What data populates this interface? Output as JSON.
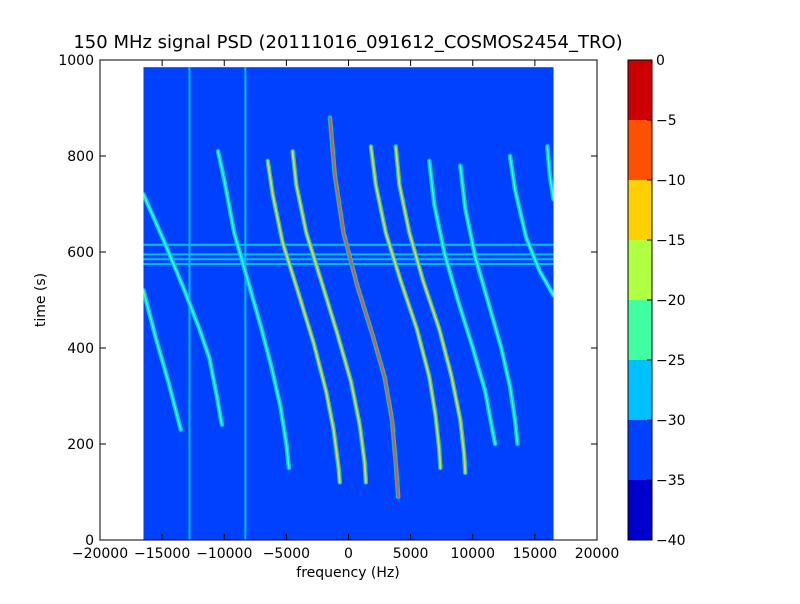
{
  "chart_data": {
    "type": "heatmap",
    "title": "150 MHz signal PSD (20111016_091612_COSMOS2454_TRO)",
    "xlabel": "frequency (Hz)",
    "ylabel": "time (s)",
    "xlim": [
      -20000,
      20000
    ],
    "ylim": [
      0,
      1000
    ],
    "x_ticks": [
      -20000,
      -15000,
      -10000,
      -5000,
      0,
      5000,
      10000,
      15000,
      20000
    ],
    "y_ticks": [
      0,
      200,
      400,
      600,
      800,
      1000
    ],
    "data_extent": {
      "x": [
        -16500,
        16500
      ],
      "y": [
        0,
        985
      ]
    },
    "background_level": -35,
    "grid": false,
    "colorbar": {
      "levels": [
        -40,
        -35,
        -30,
        -25,
        -20,
        -15,
        -10,
        -5,
        0
      ],
      "colors": [
        "#0000cc",
        "#0040ff",
        "#00c0ff",
        "#40ffa0",
        "#b0ff40",
        "#ffd000",
        "#ff5000",
        "#cc0000"
      ],
      "tick_labels": [
        "0",
        "−5",
        "−10",
        "−15",
        "−20",
        "−25",
        "−30",
        "−35",
        "−40"
      ]
    },
    "vertical_lines": [
      {
        "x": -12800,
        "level": -30
      },
      {
        "x": -8300,
        "level": -30
      }
    ],
    "horizontal_bands": [
      {
        "y": 615,
        "level": -30
      },
      {
        "y": 595,
        "level": -30
      },
      {
        "y": 585,
        "level": -30
      },
      {
        "y": 575,
        "level": -30
      }
    ],
    "traces": [
      {
        "points": [
          [
            -16500,
            720
          ],
          [
            -14800,
            620
          ],
          [
            -13200,
            520
          ],
          [
            -12000,
            440
          ],
          [
            -11200,
            380
          ],
          [
            -10600,
            300
          ],
          [
            -10200,
            240
          ]
        ],
        "level": -25
      },
      {
        "points": [
          [
            -16500,
            520
          ],
          [
            -15500,
            420
          ],
          [
            -14500,
            330
          ],
          [
            -13800,
            260
          ],
          [
            -13500,
            230
          ]
        ],
        "level": -25
      },
      {
        "points": [
          [
            -10500,
            810
          ],
          [
            -10000,
            750
          ],
          [
            -9200,
            640
          ],
          [
            -8100,
            540
          ],
          [
            -7000,
            440
          ],
          [
            -6200,
            360
          ],
          [
            -5500,
            280
          ],
          [
            -5000,
            200
          ],
          [
            -4800,
            150
          ]
        ],
        "level": -25
      },
      {
        "points": [
          [
            -6500,
            790
          ],
          [
            -6100,
            720
          ],
          [
            -5300,
            620
          ],
          [
            -4100,
            520
          ],
          [
            -2800,
            410
          ],
          [
            -1800,
            310
          ],
          [
            -1200,
            230
          ],
          [
            -800,
            150
          ],
          [
            -700,
            120
          ]
        ],
        "level": -15
      },
      {
        "points": [
          [
            -4500,
            810
          ],
          [
            -4200,
            740
          ],
          [
            -3400,
            640
          ],
          [
            -2200,
            540
          ],
          [
            -900,
            430
          ],
          [
            200,
            330
          ],
          [
            900,
            240
          ],
          [
            1300,
            160
          ],
          [
            1400,
            120
          ]
        ],
        "level": -15
      },
      {
        "points": [
          [
            -1500,
            880
          ],
          [
            -1100,
            760
          ],
          [
            -400,
            640
          ],
          [
            700,
            530
          ],
          [
            1900,
            430
          ],
          [
            2900,
            340
          ],
          [
            3500,
            250
          ],
          [
            3800,
            160
          ],
          [
            4000,
            90
          ]
        ],
        "level": -10
      },
      {
        "points": [
          [
            1800,
            820
          ],
          [
            2200,
            740
          ],
          [
            3000,
            640
          ],
          [
            4200,
            540
          ],
          [
            5500,
            440
          ],
          [
            6500,
            340
          ],
          [
            7000,
            260
          ],
          [
            7300,
            190
          ],
          [
            7400,
            150
          ]
        ],
        "level": -15
      },
      {
        "points": [
          [
            3800,
            820
          ],
          [
            4100,
            740
          ],
          [
            4900,
            640
          ],
          [
            6000,
            540
          ],
          [
            7300,
            440
          ],
          [
            8300,
            340
          ],
          [
            9000,
            250
          ],
          [
            9300,
            180
          ],
          [
            9400,
            140
          ]
        ],
        "level": -15
      },
      {
        "points": [
          [
            6500,
            790
          ],
          [
            6900,
            700
          ],
          [
            7700,
            600
          ],
          [
            8800,
            500
          ],
          [
            10000,
            400
          ],
          [
            11000,
            310
          ],
          [
            11500,
            240
          ],
          [
            11800,
            200
          ]
        ],
        "level": -25
      },
      {
        "points": [
          [
            9000,
            780
          ],
          [
            9400,
            690
          ],
          [
            10200,
            590
          ],
          [
            11300,
            490
          ],
          [
            12300,
            400
          ],
          [
            13000,
            320
          ],
          [
            13400,
            250
          ],
          [
            13600,
            200
          ]
        ],
        "level": -25
      },
      {
        "points": [
          [
            13000,
            800
          ],
          [
            13400,
            730
          ],
          [
            14300,
            630
          ],
          [
            15400,
            560
          ],
          [
            16500,
            510
          ]
        ],
        "level": -25
      },
      {
        "points": [
          [
            16000,
            820
          ],
          [
            16200,
            760
          ],
          [
            16500,
            710
          ]
        ],
        "level": -25
      }
    ]
  }
}
